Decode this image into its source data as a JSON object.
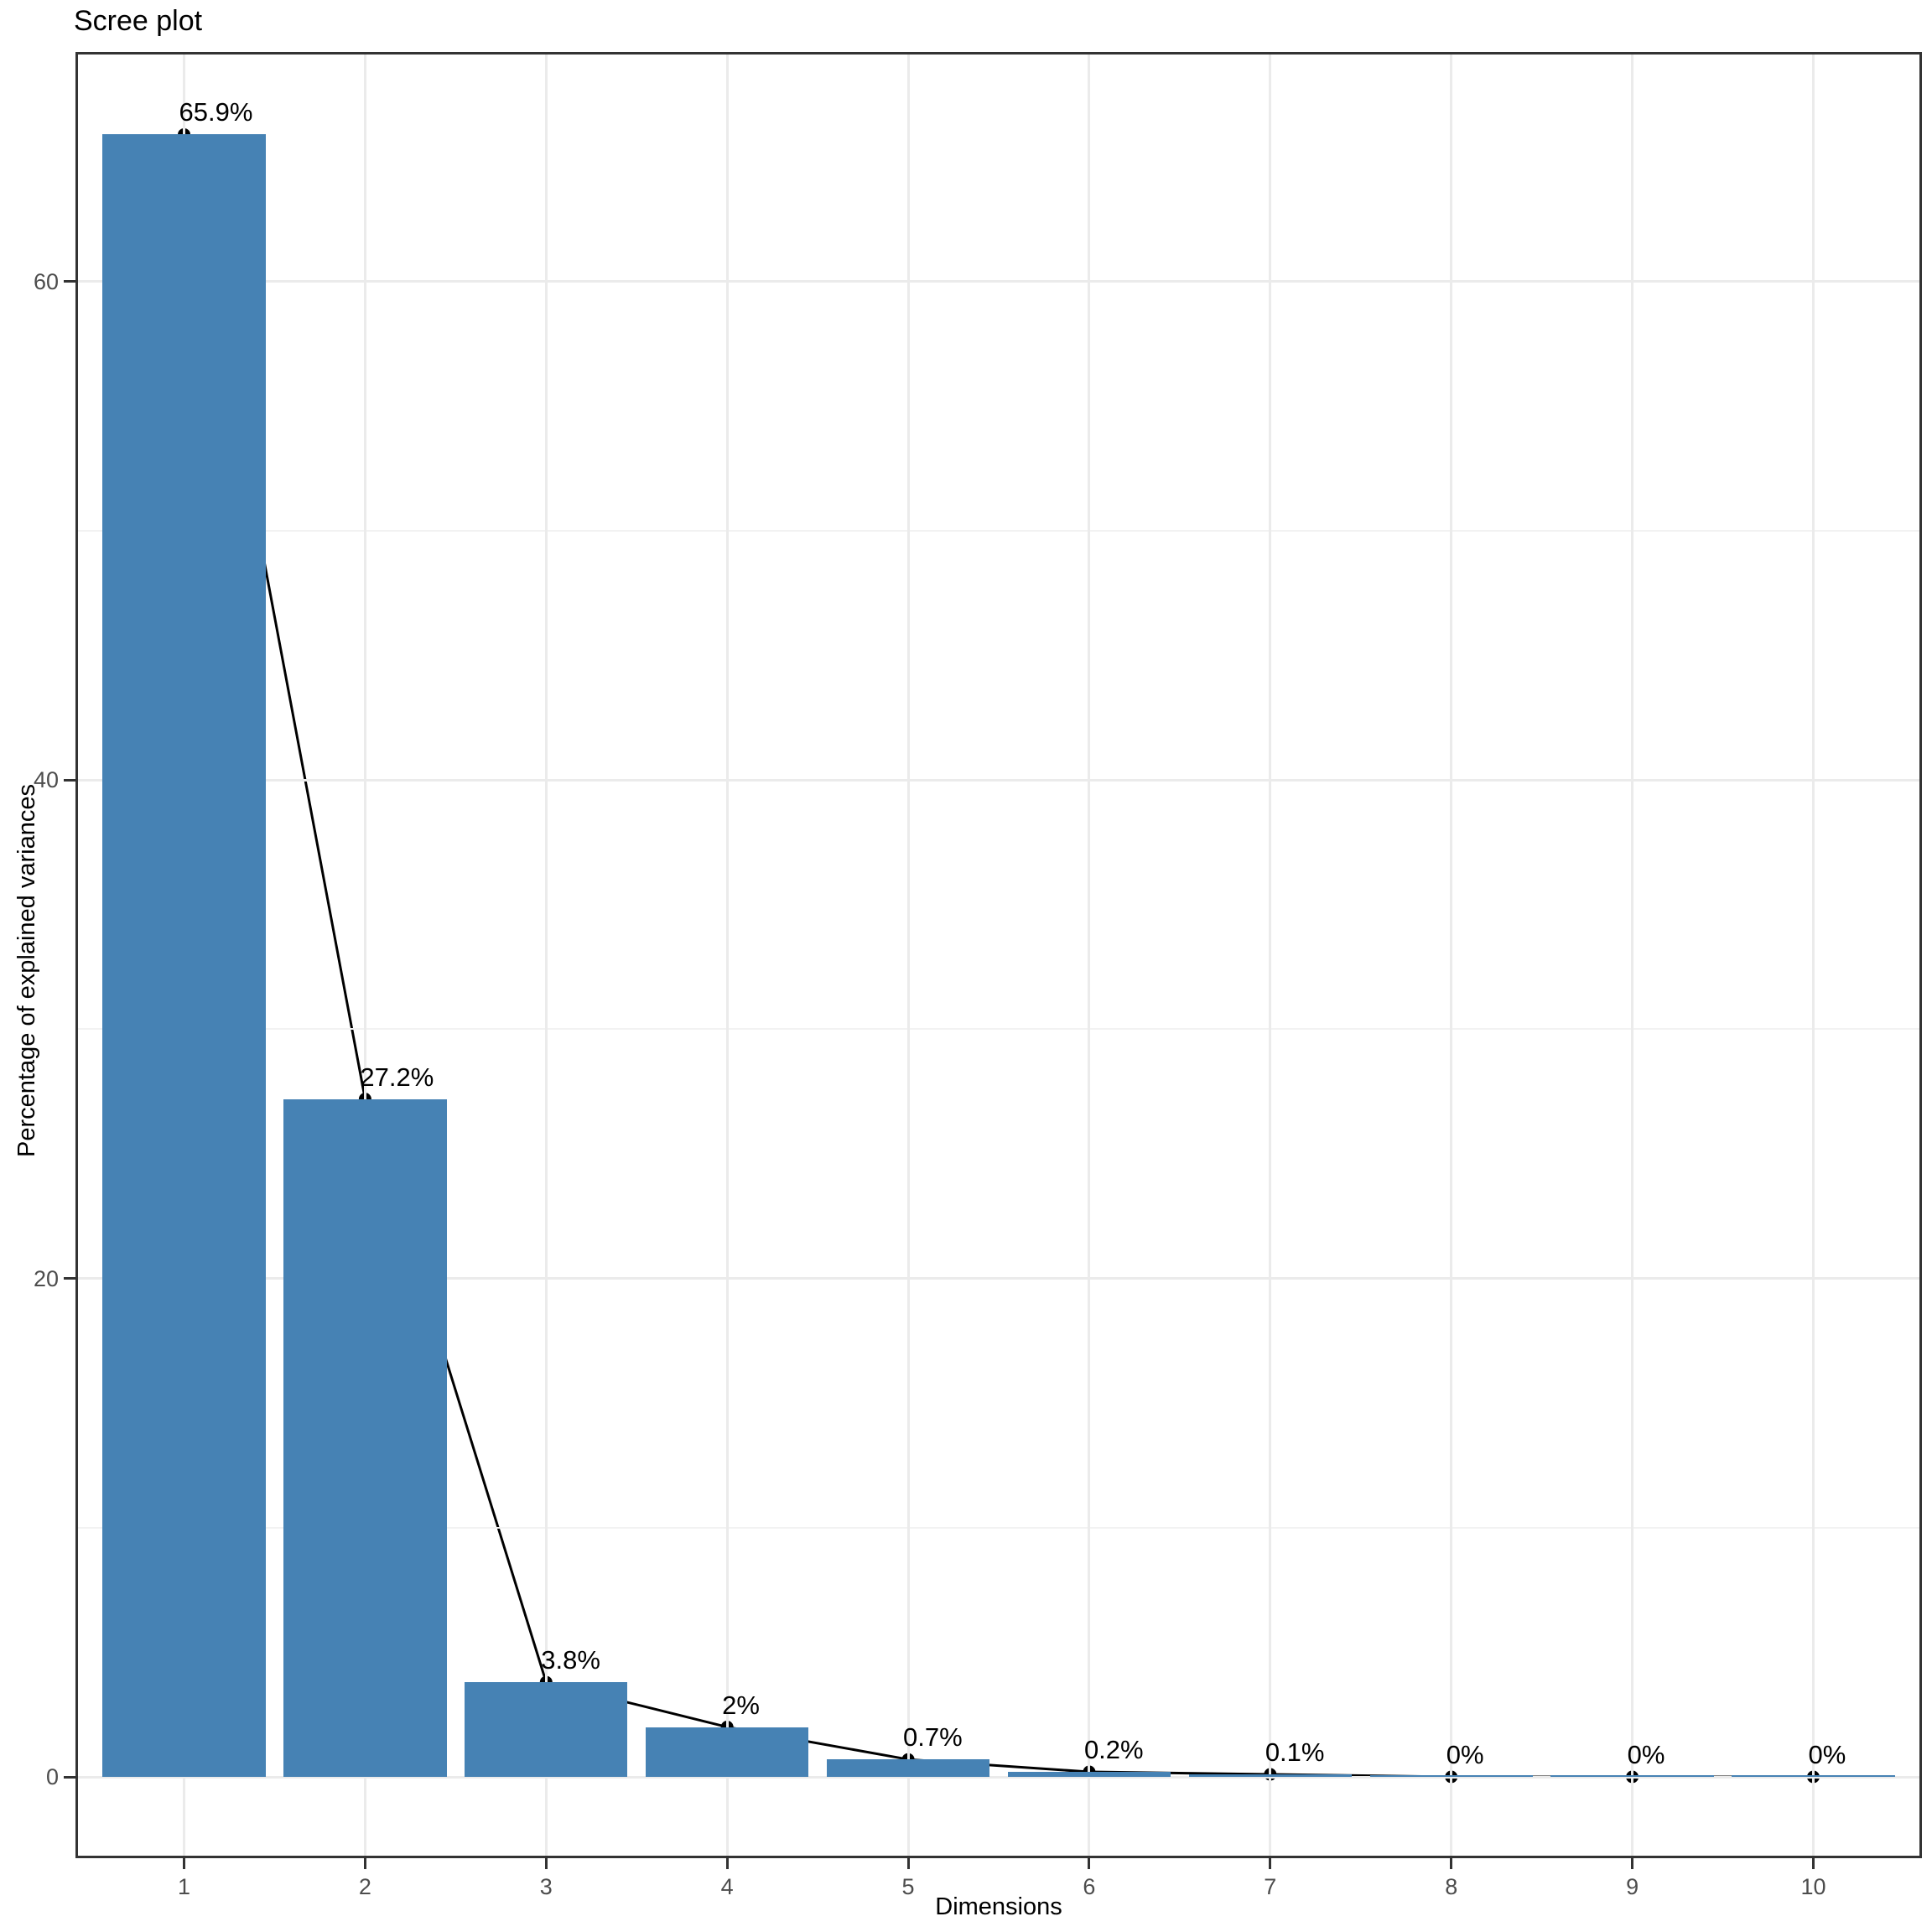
{
  "title": "Scree plot",
  "chart_data": {
    "type": "bar",
    "line_overlay": true,
    "description": "PCA scree plot: bars of percentage of explained variance per dimension with connected point-line overlay and percentage labels",
    "categories": [
      "1",
      "2",
      "3",
      "4",
      "5",
      "6",
      "7",
      "8",
      "9",
      "10"
    ],
    "values": [
      65.9,
      27.2,
      3.8,
      2,
      0.7,
      0.2,
      0.1,
      0,
      0,
      0
    ],
    "point_labels": [
      "65.9%",
      "27.2%",
      "3.8%",
      "2%",
      "0.7%",
      "0.2%",
      "0.1%",
      "0%",
      "0%",
      "0%"
    ],
    "title": "Scree plot",
    "xlabel": "Dimensions",
    "ylabel": "Percentage of explained variances",
    "y_major_ticks": [
      0,
      20,
      40,
      60
    ],
    "y_minor_gridlines": [
      10,
      30,
      50
    ],
    "ylim": [
      -3.3,
      69.2
    ],
    "legend": "none",
    "grid": true,
    "colors": {
      "bar_fill": "#4682B4",
      "line": "#000000",
      "point": "#000000",
      "label_text": "#000000",
      "axis_tick_text": "#4d4d4d",
      "axis_title_text": "#000000",
      "grid_major": "#ebebeb",
      "grid_minor": "#f2f2f2",
      "panel_border": "#333333",
      "background": "#ffffff"
    }
  }
}
